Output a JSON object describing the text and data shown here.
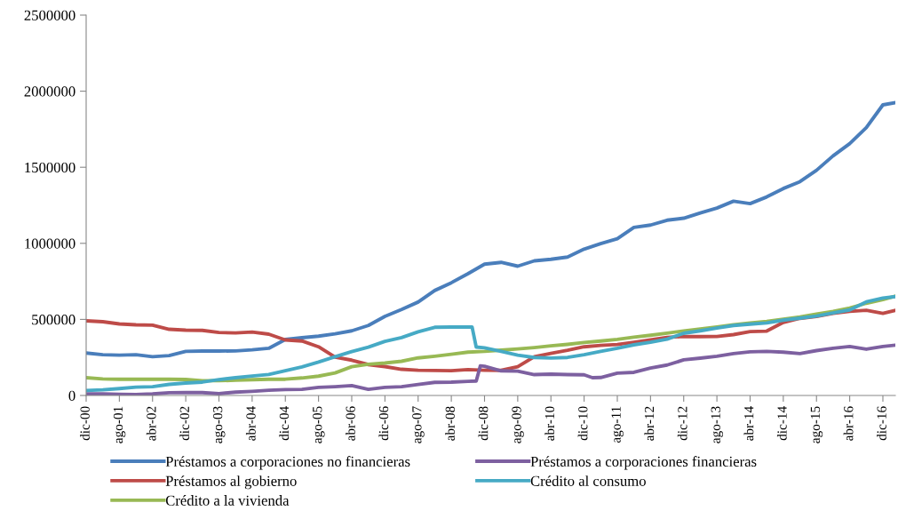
{
  "chart_data": {
    "type": "line",
    "x": [
      "2000-12",
      "2001-04",
      "2001-08",
      "2001-12",
      "2002-04",
      "2002-08",
      "2002-12",
      "2003-04",
      "2003-08",
      "2003-12",
      "2004-04",
      "2004-08",
      "2004-12",
      "2005-04",
      "2005-08",
      "2005-12",
      "2006-04",
      "2006-08",
      "2006-12",
      "2007-04",
      "2007-08",
      "2007-12",
      "2008-04",
      "2008-08",
      "2008-12",
      "2009-04",
      "2009-08",
      "2009-12",
      "2010-04",
      "2010-08",
      "2010-12",
      "2011-04",
      "2011-08",
      "2011-12",
      "2012-04",
      "2012-08",
      "2012-12",
      "2013-04",
      "2013-08",
      "2013-12",
      "2014-04",
      "2014-08",
      "2014-12",
      "2015-04",
      "2015-08",
      "2015-12",
      "2016-04",
      "2016-08",
      "2016-12",
      "2017-03"
    ],
    "series": [
      {
        "name": "Préstamos a corporaciones no financieras",
        "color": "#4a7ebb",
        "values": [
          279000,
          268000,
          265000,
          268000,
          255000,
          262000,
          290000,
          292000,
          292000,
          293000,
          300000,
          310000,
          368000,
          380000,
          390000,
          405000,
          425000,
          460000,
          520000,
          565000,
          614000,
          690000,
          741000,
          800000,
          863000,
          875000,
          850000,
          885000,
          895000,
          910000,
          962000,
          998000,
          1030000,
          1105000,
          1120000,
          1152000,
          1165000,
          1200000,
          1232000,
          1277000,
          1261000,
          1305000,
          1360000,
          1405000,
          1480000,
          1575000,
          1655000,
          1760000,
          1910000,
          1925000
        ]
      },
      {
        "name": "Préstamos al gobierno",
        "color": "#be4b48",
        "values": [
          491000,
          485000,
          470000,
          464000,
          462000,
          435000,
          429000,
          428000,
          414000,
          411000,
          417000,
          403000,
          365000,
          358000,
          320000,
          252000,
          232000,
          203000,
          190000,
          172000,
          166000,
          164000,
          163000,
          170000,
          166000,
          165000,
          189000,
          255000,
          277000,
          297000,
          320000,
          329000,
          335000,
          350000,
          365000,
          382000,
          388000,
          387000,
          388000,
          400000,
          420000,
          423000,
          480000,
          507000,
          520000,
          540000,
          553000,
          560000,
          540000,
          560000
        ]
      },
      {
        "name": "Crédito a la vivienda",
        "color": "#98b954",
        "values": [
          117000,
          109000,
          107000,
          107000,
          107000,
          107000,
          105000,
          97000,
          97000,
          100000,
          104000,
          107000,
          107000,
          115000,
          127000,
          148000,
          189000,
          205000,
          213000,
          225000,
          247000,
          258000,
          271000,
          285000,
          290000,
          298000,
          306000,
          315000,
          326000,
          336000,
          348000,
          358000,
          369000,
          383000,
          396000,
          410000,
          424000,
          437000,
          450000,
          465000,
          476000,
          487000,
          502000,
          516000,
          535000,
          553000,
          575000,
          606000,
          630000,
          653000
        ]
      },
      {
        "name": "Préstamos a corporaciones financieras",
        "color": "#7d60a0",
        "x": [
          "2000-12",
          "2001-04",
          "2001-08",
          "2001-12",
          "2002-04",
          "2002-08",
          "2002-12",
          "2003-04",
          "2003-08",
          "2003-12",
          "2004-04",
          "2004-08",
          "2004-12",
          "2005-04",
          "2005-08",
          "2005-12",
          "2006-04",
          "2006-08",
          "2006-12",
          "2007-04",
          "2007-08",
          "2007-12",
          "2008-04",
          "2008-08",
          "2008-10",
          "2008-11",
          "2008-12",
          "2009-04",
          "2009-08",
          "2009-12",
          "2010-04",
          "2010-08",
          "2010-12",
          "2011-02",
          "2011-04",
          "2011-08",
          "2011-12",
          "2012-04",
          "2012-08",
          "2012-12",
          "2013-04",
          "2013-08",
          "2013-12",
          "2014-04",
          "2014-08",
          "2014-12",
          "2015-04",
          "2015-08",
          "2015-12",
          "2016-04",
          "2016-08",
          "2016-12",
          "2017-03"
        ],
        "values": [
          10000,
          10000,
          8000,
          6000,
          10000,
          18000,
          19000,
          19000,
          12000,
          22000,
          27000,
          34000,
          39000,
          40000,
          53000,
          58000,
          65000,
          40000,
          53000,
          58000,
          72000,
          86000,
          88000,
          93000,
          95000,
          195000,
          192000,
          162000,
          160000,
          137000,
          140000,
          137000,
          136000,
          117000,
          118000,
          147000,
          152000,
          180000,
          200000,
          234000,
          245000,
          258000,
          275000,
          287000,
          290000,
          285000,
          275000,
          295000,
          310000,
          322000,
          304000,
          322000,
          331000
        ]
      },
      {
        "name": "Crédito al consumo",
        "color": "#46aac5",
        "x": [
          "2000-12",
          "2001-04",
          "2001-08",
          "2001-12",
          "2002-04",
          "2002-08",
          "2002-12",
          "2003-04",
          "2003-08",
          "2003-12",
          "2004-04",
          "2004-08",
          "2004-12",
          "2005-04",
          "2005-08",
          "2005-12",
          "2006-04",
          "2006-08",
          "2006-12",
          "2007-04",
          "2007-08",
          "2007-12",
          "2008-04",
          "2008-08",
          "2008-09",
          "2008-10",
          "2008-12",
          "2009-04",
          "2009-08",
          "2009-12",
          "2010-04",
          "2010-08",
          "2010-12",
          "2011-04",
          "2011-08",
          "2011-12",
          "2012-04",
          "2012-08",
          "2012-12",
          "2013-04",
          "2013-08",
          "2013-12",
          "2014-04",
          "2014-08",
          "2014-12",
          "2015-04",
          "2015-08",
          "2015-12",
          "2016-04",
          "2016-08",
          "2016-12",
          "2017-03"
        ],
        "values": [
          33000,
          37000,
          45000,
          55000,
          58000,
          73000,
          82000,
          88000,
          104000,
          117000,
          128000,
          138000,
          163000,
          188000,
          220000,
          255000,
          288000,
          318000,
          356000,
          380000,
          418000,
          448000,
          450000,
          450000,
          450000,
          318000,
          313000,
          290000,
          265000,
          250000,
          246000,
          250000,
          268000,
          290000,
          310000,
          333000,
          350000,
          370000,
          409000,
          425000,
          443000,
          460000,
          469000,
          477000,
          495000,
          508000,
          522000,
          543000,
          562000,
          615000,
          640000,
          650000
        ]
      }
    ],
    "xlim": [
      "2000-12",
      "2017-03"
    ],
    "xticks": [
      {
        "value": "2000-12",
        "label": "dic-00"
      },
      {
        "value": "2001-08",
        "label": "ago-01"
      },
      {
        "value": "2002-04",
        "label": "abr-02"
      },
      {
        "value": "2002-12",
        "label": "dic-02"
      },
      {
        "value": "2003-08",
        "label": "ago-03"
      },
      {
        "value": "2004-04",
        "label": "abr-04"
      },
      {
        "value": "2004-12",
        "label": "dic-04"
      },
      {
        "value": "2005-08",
        "label": "ago-05"
      },
      {
        "value": "2006-04",
        "label": "abr-06"
      },
      {
        "value": "2006-12",
        "label": "dic-06"
      },
      {
        "value": "2007-08",
        "label": "ago-07"
      },
      {
        "value": "2008-04",
        "label": "abr-08"
      },
      {
        "value": "2008-12",
        "label": "dic-08"
      },
      {
        "value": "2009-08",
        "label": "ago-09"
      },
      {
        "value": "2010-04",
        "label": "abr-10"
      },
      {
        "value": "2010-12",
        "label": "dic-10"
      },
      {
        "value": "2011-08",
        "label": "ago-11"
      },
      {
        "value": "2012-04",
        "label": "abr-12"
      },
      {
        "value": "2012-12",
        "label": "dic-12"
      },
      {
        "value": "2013-08",
        "label": "ago-13"
      },
      {
        "value": "2014-04",
        "label": "abr-14"
      },
      {
        "value": "2014-12",
        "label": "dic-14"
      },
      {
        "value": "2015-08",
        "label": "ago-15"
      },
      {
        "value": "2016-04",
        "label": "abr-16"
      },
      {
        "value": "2016-12",
        "label": "dic-16"
      }
    ],
    "ylim": [
      0,
      2500000
    ],
    "yticks": [
      0,
      500000,
      1000000,
      1500000,
      2000000,
      2500000
    ],
    "grid": false,
    "legend": "bottom",
    "marker": "none",
    "line_style": "solid"
  }
}
